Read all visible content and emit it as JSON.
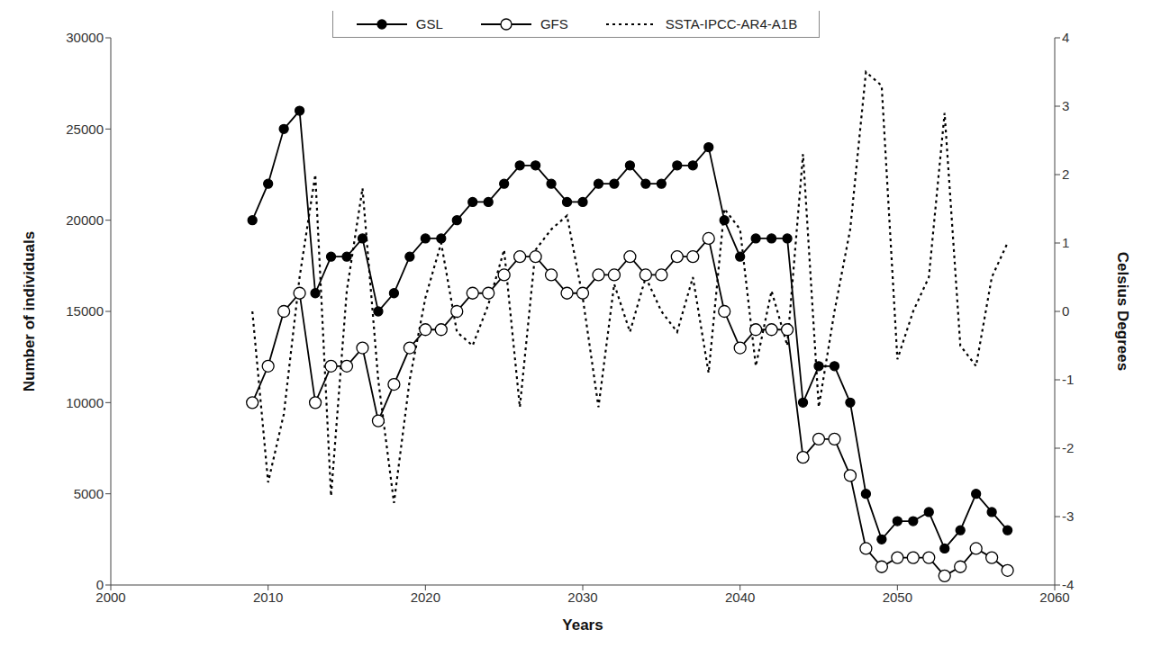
{
  "chart_data": {
    "type": "line",
    "x_label": "Years",
    "y_label": "Number of individuals",
    "y2_label": "Celsius Degrees",
    "legend": "top",
    "x": [
      2009,
      2010,
      2011,
      2012,
      2013,
      2014,
      2015,
      2016,
      2017,
      2018,
      2019,
      2020,
      2021,
      2022,
      2023,
      2024,
      2025,
      2026,
      2027,
      2028,
      2029,
      2030,
      2031,
      2032,
      2033,
      2034,
      2035,
      2036,
      2037,
      2038,
      2039,
      2040,
      2041,
      2042,
      2043,
      2044,
      2045,
      2046,
      2047,
      2048,
      2049,
      2050,
      2051,
      2052,
      2053,
      2054,
      2055,
      2056,
      2057
    ],
    "xlim": [
      2000,
      2060
    ],
    "xticks": [
      2000,
      2010,
      2020,
      2030,
      2040,
      2050,
      2060
    ],
    "ylim": [
      0,
      30000
    ],
    "yticks": [
      0,
      5000,
      10000,
      15000,
      20000,
      25000,
      30000
    ],
    "y2lim": [
      -4,
      4
    ],
    "y2ticks": [
      -4,
      -3,
      -2,
      -1,
      0,
      1,
      2,
      3,
      4
    ],
    "series": [
      {
        "name": "GSL",
        "color": "#000000",
        "marker": "filled_circle",
        "line_style": "solid",
        "values": [
          20000,
          22000,
          25000,
          26000,
          16000,
          18000,
          18000,
          19000,
          15000,
          16000,
          18000,
          19000,
          19000,
          20000,
          21000,
          21000,
          22000,
          23000,
          23000,
          22000,
          21000,
          21000,
          22000,
          22000,
          23000,
          22000,
          22000,
          23000,
          23000,
          24000,
          20000,
          18000,
          19000,
          19000,
          19000,
          10000,
          12000,
          12000,
          10000,
          5000,
          2500,
          3500,
          3500,
          4000,
          2000,
          3000,
          5000,
          4000,
          3000
        ]
      },
      {
        "name": "GFS",
        "color": "#000000",
        "marker": "open_circle",
        "line_style": "solid",
        "values": [
          10000,
          12000,
          15000,
          16000,
          10000,
          12000,
          12000,
          13000,
          9000,
          11000,
          13000,
          14000,
          14000,
          15000,
          16000,
          16000,
          17000,
          18000,
          18000,
          17000,
          16000,
          16000,
          17000,
          17000,
          18000,
          17000,
          17000,
          18000,
          18000,
          19000,
          15000,
          13000,
          14000,
          14000,
          14000,
          7000,
          8000,
          8000,
          6000,
          2000,
          1000,
          1500,
          1500,
          1500,
          500,
          1000,
          2000,
          1500,
          800
        ]
      },
      {
        "name": "SSTA-IPCC-AR4-A1B",
        "color": "#000000",
        "marker": "none",
        "line_style": "dotted",
        "axis": "y2",
        "values": [
          0.0,
          -2.5,
          -1.5,
          0.5,
          2.0,
          -2.7,
          0.3,
          1.8,
          -1.0,
          -2.8,
          -1.0,
          0.2,
          1.0,
          -0.3,
          -0.5,
          0.1,
          0.9,
          -1.4,
          0.9,
          1.2,
          1.4,
          0.2,
          -1.4,
          0.4,
          -0.3,
          0.5,
          0.0,
          -0.3,
          0.5,
          -0.9,
          1.5,
          1.2,
          -0.8,
          0.3,
          -0.5,
          2.3,
          -1.4,
          0.0,
          1.2,
          3.5,
          3.3,
          -0.7,
          0.0,
          0.5,
          2.9,
          -0.5,
          -0.8,
          0.5,
          1.0
        ]
      }
    ]
  }
}
